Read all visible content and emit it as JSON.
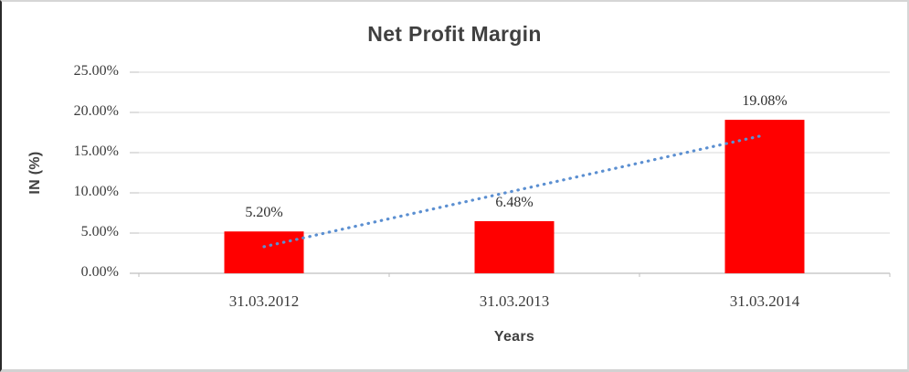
{
  "chart_data": {
    "type": "bar",
    "title": "Net Profit Margin",
    "xlabel": "Years",
    "ylabel": "IN (%)",
    "categories": [
      "31.03.2012",
      "31.03.2013",
      "31.03.2014"
    ],
    "values": [
      5.2,
      6.48,
      19.08
    ],
    "data_labels": [
      "5.20%",
      "6.48%",
      "19.08%"
    ],
    "ylim": [
      0,
      25
    ],
    "ytick_step": 5,
    "ytick_labels": [
      "0.00%",
      "5.00%",
      "10.00%",
      "15.00%",
      "20.00%",
      "25.00%"
    ],
    "grid": true,
    "legend": "none",
    "bar_color": "#ff0000",
    "trendline": {
      "type": "linear",
      "style": "dotted",
      "color": "#5b8fd1",
      "start_value": 3.31,
      "end_value": 17.19
    },
    "colors": {
      "gridline": "#d9d9d9",
      "axis_line": "#bfbfbf",
      "title_text": "#404040",
      "label_text": "#3b3b3b",
      "background": "#ffffff"
    }
  }
}
